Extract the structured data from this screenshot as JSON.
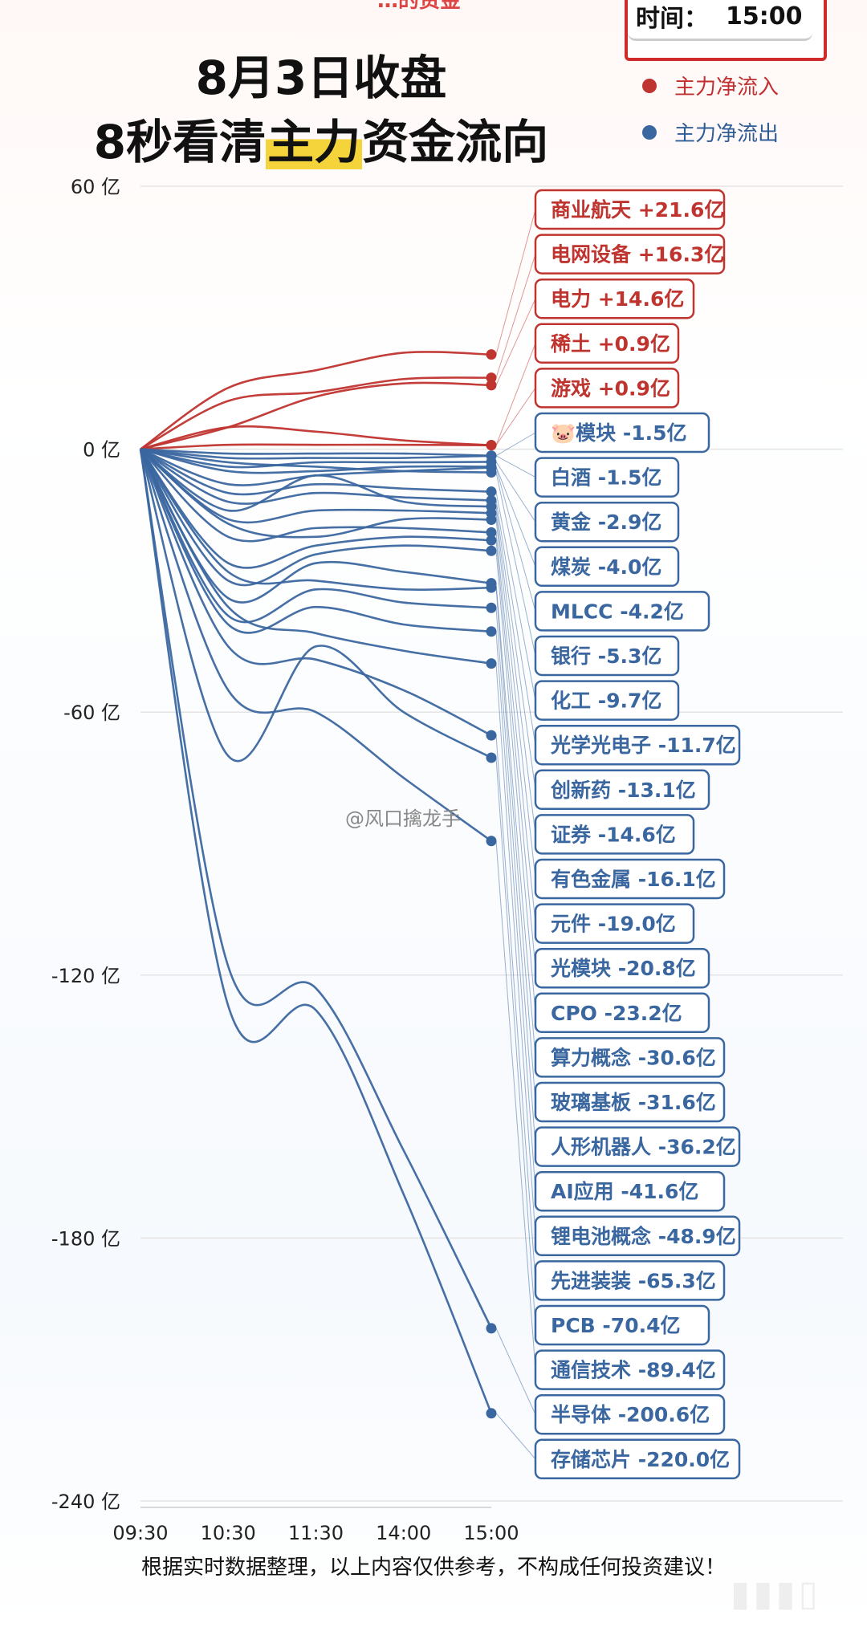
{
  "header": {
    "top_fragment": "…的资金",
    "title_line1": "8月3日收盘",
    "title_line2_pre": "8秒看清",
    "title_line2_highlight": "主力",
    "title_line2_post": "资金流向",
    "time_label": "时间：",
    "time_value": "15:00"
  },
  "legend": {
    "inflow": {
      "label": "主力净流入",
      "color": "#c0342f"
    },
    "outflow": {
      "label": "主力净流出",
      "color": "#3b67a0"
    }
  },
  "footer": {
    "disclaimer": "根据实时数据整理，以上内容仅供参考，不构成任何投资建议！",
    "watermark": "@风口擒龙手"
  },
  "chart_data": {
    "type": "line",
    "title": "8月3日收盘 8秒看清主力资金流向",
    "x": [
      "09:30",
      "10:30",
      "11:30",
      "14:00",
      "15:00"
    ],
    "ylim": [
      -240,
      60
    ],
    "yticks": [
      60,
      0,
      -60,
      -120,
      -180,
      -240
    ],
    "ytick_labels": [
      "60 亿",
      "0 亿",
      "-60 亿",
      "-120 亿",
      "-180 亿",
      "-240 亿"
    ],
    "grid": true,
    "series": [
      {
        "name": "商业航天",
        "label": "商业航天 +21.6亿",
        "final": 21.6,
        "direction": "in",
        "values": [
          0,
          14,
          18,
          22,
          21.6
        ]
      },
      {
        "name": "电网设备",
        "label": "电网设备 +16.3亿",
        "final": 16.3,
        "direction": "in",
        "values": [
          0,
          11,
          13,
          16,
          16.3
        ]
      },
      {
        "name": "电力",
        "label": "电力 +14.6亿",
        "final": 14.6,
        "direction": "in",
        "values": [
          0,
          5,
          12,
          15,
          14.6
        ]
      },
      {
        "name": "稀土",
        "label": "稀土 +0.9亿",
        "final": 0.9,
        "direction": "in",
        "values": [
          0,
          5,
          4,
          2,
          0.9
        ]
      },
      {
        "name": "游戏",
        "label": "游戏 +0.9亿",
        "final": 0.9,
        "direction": "in",
        "values": [
          0,
          1,
          1,
          1,
          0.9
        ]
      },
      {
        "name": "🐷模块",
        "label": "🐷模块 -1.5亿",
        "final": -1.5,
        "direction": "out",
        "values": [
          0,
          -1,
          -1,
          -1,
          -1.5
        ]
      },
      {
        "name": "白酒",
        "label": "白酒 -1.5亿",
        "final": -1.5,
        "direction": "out",
        "values": [
          0,
          -2,
          -2,
          -2,
          -1.5
        ]
      },
      {
        "name": "黄金",
        "label": "黄金 -2.9亿",
        "final": -2.9,
        "direction": "out",
        "values": [
          0,
          -4,
          -3,
          -3,
          -2.9
        ]
      },
      {
        "name": "煤炭",
        "label": "煤炭 -4.0亿",
        "final": -4.0,
        "direction": "out",
        "values": [
          0,
          -5,
          -5,
          -4,
          -4.0
        ]
      },
      {
        "name": "MLCC",
        "label": "MLCC -4.2亿",
        "final": -4.2,
        "direction": "out",
        "values": [
          0,
          -8,
          -6,
          -5,
          -4.2
        ]
      },
      {
        "name": "银行",
        "label": "银行 -5.3亿",
        "final": -5.3,
        "direction": "out",
        "values": [
          0,
          -3,
          -4,
          -5,
          -5.3
        ]
      },
      {
        "name": "化工",
        "label": "化工 -9.7亿",
        "final": -9.7,
        "direction": "out",
        "values": [
          0,
          -10,
          -8,
          -9,
          -9.7
        ]
      },
      {
        "name": "光学光电子",
        "label": "光学光电子 -11.7亿",
        "final": -11.7,
        "direction": "out",
        "values": [
          0,
          -12,
          -10,
          -11,
          -11.7
        ]
      },
      {
        "name": "创新药",
        "label": "创新药 -13.1亿",
        "final": -13.1,
        "direction": "out",
        "values": [
          0,
          -14,
          -6,
          -12,
          -13.1
        ]
      },
      {
        "name": "证券",
        "label": "证券 -14.6亿",
        "final": -14.6,
        "direction": "out",
        "values": [
          0,
          -16,
          -14,
          -14,
          -14.6
        ]
      },
      {
        "name": "有色金属",
        "label": "有色金属 -16.1亿",
        "final": -16.1,
        "direction": "out",
        "values": [
          0,
          -17,
          -20,
          -16,
          -16.1
        ]
      },
      {
        "name": "元件",
        "label": "元件 -19.0亿",
        "final": -19.0,
        "direction": "out",
        "values": [
          0,
          -20,
          -18,
          -18,
          -19.0
        ]
      },
      {
        "name": "光模块",
        "label": "光模块 -20.8亿",
        "final": -20.8,
        "direction": "out",
        "values": [
          0,
          -26,
          -22,
          -20,
          -20.8
        ]
      },
      {
        "name": "CPO",
        "label": "CPO -23.2亿",
        "final": -23.2,
        "direction": "out",
        "values": [
          0,
          -30,
          -24,
          -22,
          -23.2
        ]
      },
      {
        "name": "算力概念",
        "label": "算力概念 -30.6亿",
        "final": -30.6,
        "direction": "out",
        "values": [
          0,
          -34,
          -26,
          -28,
          -30.6
        ]
      },
      {
        "name": "玻璃基板",
        "label": "玻璃基板 -31.6亿",
        "final": -31.6,
        "direction": "out",
        "values": [
          0,
          -28,
          -30,
          -32,
          -31.6
        ]
      },
      {
        "name": "人形机器人",
        "label": "人形机器人 -36.2亿",
        "final": -36.2,
        "direction": "out",
        "values": [
          0,
          -38,
          -32,
          -35,
          -36.2
        ]
      },
      {
        "name": "AI应用",
        "label": "AI应用 -41.6亿",
        "final": -41.6,
        "direction": "out",
        "values": [
          0,
          -40,
          -36,
          -40,
          -41.6
        ]
      },
      {
        "name": "锂电池概念",
        "label": "锂电池概念 -48.9亿",
        "final": -48.9,
        "direction": "out",
        "values": [
          0,
          -36,
          -42,
          -46,
          -48.9
        ]
      },
      {
        "name": "先进装装",
        "label": "先进装装 -65.3亿",
        "final": -65.3,
        "direction": "out",
        "values": [
          0,
          -45,
          -48,
          -55,
          -65.3
        ]
      },
      {
        "name": "PCB",
        "label": "PCB -70.4亿",
        "final": -70.4,
        "direction": "out",
        "values": [
          0,
          -70,
          -45,
          -60,
          -70.4
        ]
      },
      {
        "name": "通信技术",
        "label": "通信技术 -89.4亿",
        "final": -89.4,
        "direction": "out",
        "values": [
          0,
          -55,
          -60,
          -75,
          -89.4
        ]
      },
      {
        "name": "半导体",
        "label": "半导体 -200.6亿",
        "final": -200.6,
        "direction": "out",
        "values": [
          0,
          -118,
          -123,
          -160,
          -200.6
        ]
      },
      {
        "name": "存储芯片",
        "label": "存储芯片 -220.0亿",
        "final": -220.0,
        "direction": "out",
        "values": [
          0,
          -127,
          -128,
          -170,
          -220.0
        ]
      }
    ]
  }
}
